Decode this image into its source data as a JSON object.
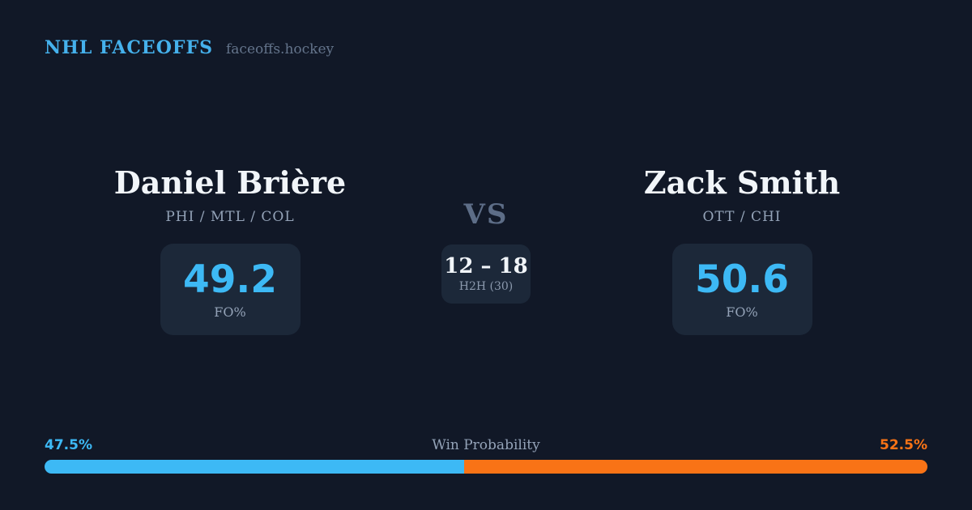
{
  "brand": {
    "title": "NHL FACEOFFS",
    "domain": "faceoffs.hockey"
  },
  "matchup": {
    "vs_label": "VS",
    "h2h": {
      "score": "12 – 18",
      "label": "H2H (30)"
    },
    "players": [
      {
        "name": "Daniel Brière",
        "teams": "PHI / MTL / COL",
        "stat_value": "49.2",
        "stat_label": "FO%"
      },
      {
        "name": "Zack Smith",
        "teams": "OTT / CHI",
        "stat_value": "50.6",
        "stat_label": "FO%"
      }
    ]
  },
  "win_probability": {
    "label": "Win Probability",
    "left": {
      "value": 47.5,
      "display": "47.5%",
      "color": "#3db9f5"
    },
    "right": {
      "value": 52.5,
      "display": "52.5%",
      "color": "#f97316"
    }
  },
  "colors": {
    "background": "#111827",
    "box": "#1c2839",
    "accent_blue": "#3db9f5",
    "accent_orange": "#f97316",
    "text_primary": "#f1f5f9",
    "text_muted": "#94a3b8"
  }
}
